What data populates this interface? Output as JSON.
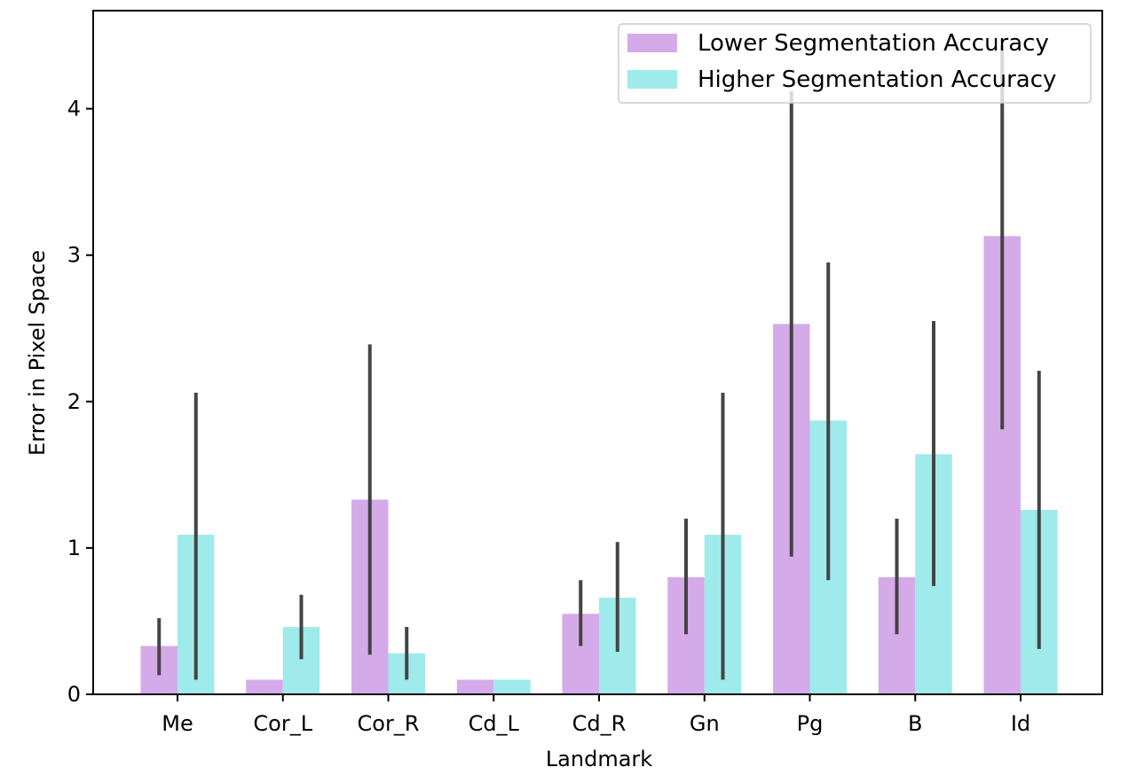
{
  "colors": {
    "series_lower": "#d5aae9",
    "series_higher": "#9feaea",
    "errorbar": "#444444",
    "axis": "#000000"
  },
  "chart_data": {
    "type": "bar",
    "title": "",
    "xlabel": "Landmark",
    "ylabel": "Error in Pixel Space",
    "ylim": [
      0,
      4.67
    ],
    "yticks": [
      0,
      1,
      2,
      3,
      4
    ],
    "categories": [
      "Me",
      "Cor_L",
      "Cor_R",
      "Cd_L",
      "Cd_R",
      "Gn",
      "Pg",
      "B",
      "Id"
    ],
    "legend_position": "top-right",
    "series": [
      {
        "name": "Lower Segmentation Accuracy",
        "values": [
          0.33,
          0.1,
          1.33,
          0.1,
          0.55,
          0.8,
          2.53,
          0.8,
          3.13
        ],
        "error_low": [
          0.13,
          0.1,
          0.27,
          0.1,
          0.33,
          0.41,
          0.94,
          0.41,
          1.81
        ],
        "error_high": [
          0.52,
          0.1,
          2.39,
          0.1,
          0.78,
          1.2,
          4.12,
          1.2,
          4.43
        ]
      },
      {
        "name": "Higher Segmentation Accuracy",
        "values": [
          1.09,
          0.46,
          0.28,
          0.1,
          0.66,
          1.09,
          1.87,
          1.64,
          1.26
        ],
        "error_low": [
          0.1,
          0.24,
          0.1,
          0.1,
          0.29,
          0.1,
          0.78,
          0.74,
          0.31
        ],
        "error_high": [
          2.06,
          0.68,
          0.46,
          0.1,
          1.04,
          2.06,
          2.95,
          2.55,
          2.21
        ]
      }
    ]
  }
}
